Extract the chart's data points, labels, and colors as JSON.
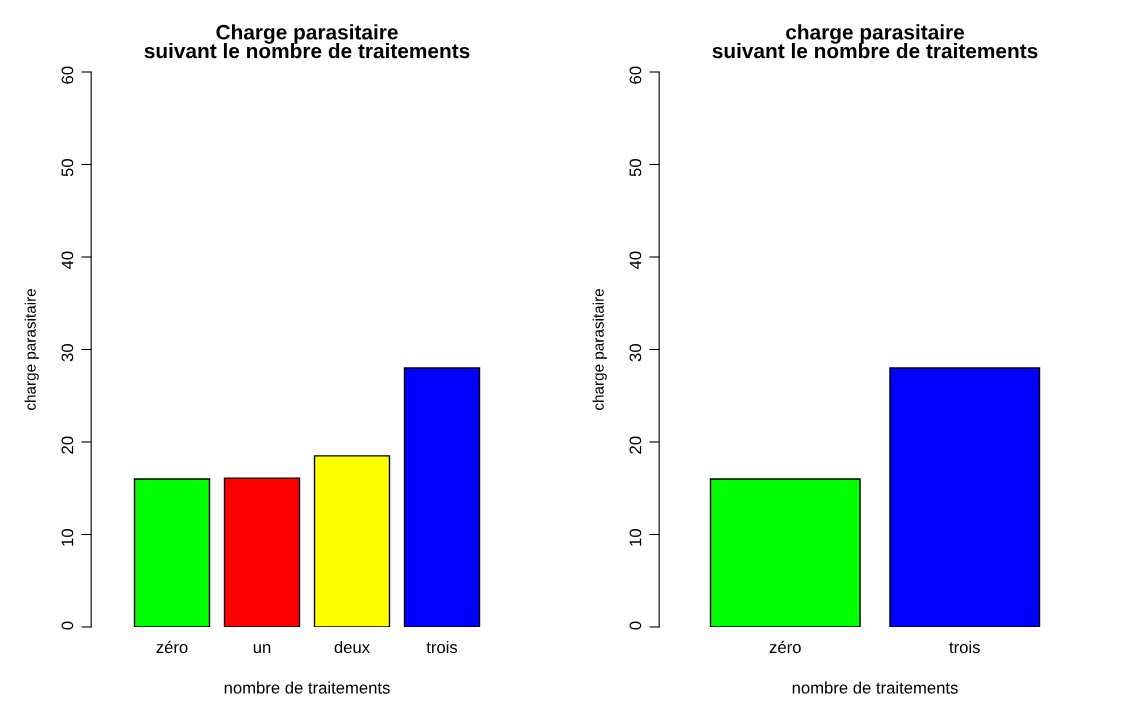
{
  "chart_data": [
    {
      "type": "bar",
      "title": "Charge parasitaire\nsuivant le nombre de traitements",
      "xlabel": "nombre de traitements",
      "ylabel": "charge parasitaire",
      "categories": [
        "zéro",
        "un",
        "deux",
        "trois"
      ],
      "values": [
        16.0,
        16.1,
        18.5,
        28.0
      ],
      "colors": [
        "#00ff00",
        "#ff0000",
        "#ffff00",
        "#0000ff"
      ],
      "ylim": [
        0,
        60
      ],
      "yticks": [
        0,
        10,
        20,
        30,
        40,
        50,
        60
      ],
      "grid": false,
      "legend": false
    },
    {
      "type": "bar",
      "title": "charge parasitaire\nsuivant le nombre de traitements",
      "xlabel": "nombre de traitements",
      "ylabel": "charge parasitaire",
      "categories": [
        "zéro",
        "trois"
      ],
      "values": [
        16.0,
        28.0
      ],
      "colors": [
        "#00ff00",
        "#0000ff"
      ],
      "ylim": [
        0,
        60
      ],
      "yticks": [
        0,
        10,
        20,
        30,
        40,
        50,
        60
      ],
      "grid": false,
      "legend": false
    }
  ]
}
